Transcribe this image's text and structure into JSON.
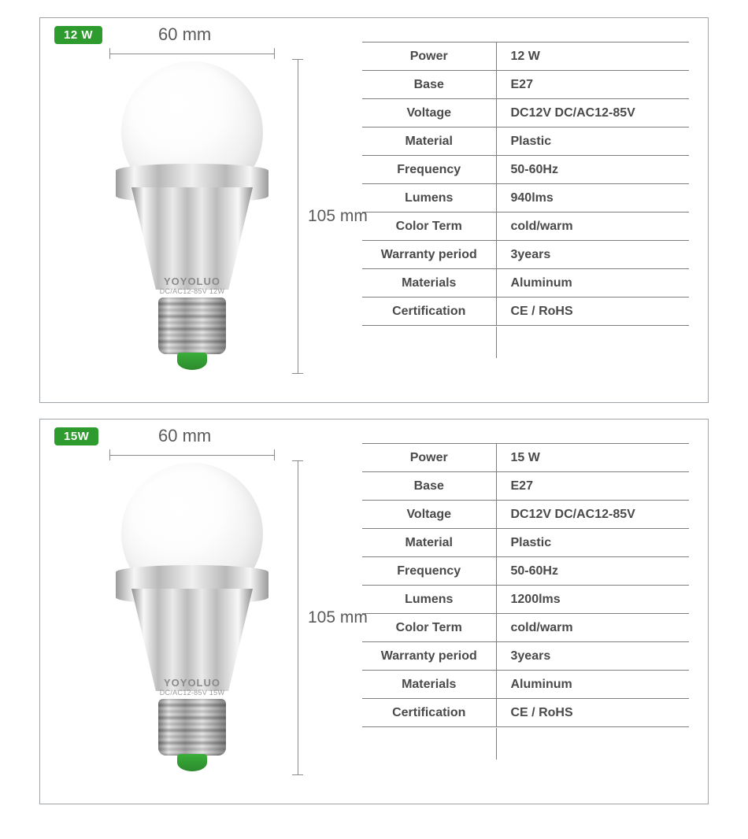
{
  "colors": {
    "border": "#9fa4a8",
    "table_border": "#7d7d7d",
    "badge_bg": "#2e9b2e",
    "badge_fg": "#ffffff",
    "text": "#4a4a4a",
    "dim_text": "#5a5a5a",
    "brand_text": "#8a8a8a",
    "bulb_tip": "#2e9b2e"
  },
  "cards": [
    {
      "badge": "12 W",
      "width_label": "60 mm",
      "height_label": "105 mm",
      "brand": "YOYOLUO",
      "subbrand": "DC/AC12-85V 12W",
      "specs": [
        {
          "k": "Power",
          "v": "12 W"
        },
        {
          "k": "Base",
          "v": "E27"
        },
        {
          "k": "Voltage",
          "v": "DC12V    DC/AC12-85V"
        },
        {
          "k": "Material",
          "v": "Plastic"
        },
        {
          "k": "Frequency",
          "v": "50-60Hz"
        },
        {
          "k": "Lumens",
          "v": "940lms"
        },
        {
          "k": "Color Term",
          "v": "cold/warm"
        },
        {
          "k": "Warranty period",
          "v": "3years"
        },
        {
          "k": "Materials",
          "v": "Aluminum"
        },
        {
          "k": "Certification",
          "v": "CE / RoHS"
        }
      ]
    },
    {
      "badge": "15W",
      "width_label": "60 mm",
      "height_label": "105 mm",
      "brand": "YOYOLUO",
      "subbrand": "DC/AC12-85V 15W",
      "specs": [
        {
          "k": "Power",
          "v": "15 W"
        },
        {
          "k": "Base",
          "v": "E27"
        },
        {
          "k": "Voltage",
          "v": "DC12V    DC/AC12-85V"
        },
        {
          "k": "Material",
          "v": "Plastic"
        },
        {
          "k": "Frequency",
          "v": "50-60Hz"
        },
        {
          "k": "Lumens",
          "v": "1200lms"
        },
        {
          "k": "Color Term",
          "v": "cold/warm"
        },
        {
          "k": "Warranty period",
          "v": "3years"
        },
        {
          "k": "Materials",
          "v": "Aluminum"
        },
        {
          "k": "Certification",
          "v": "CE / RoHS"
        }
      ]
    }
  ]
}
